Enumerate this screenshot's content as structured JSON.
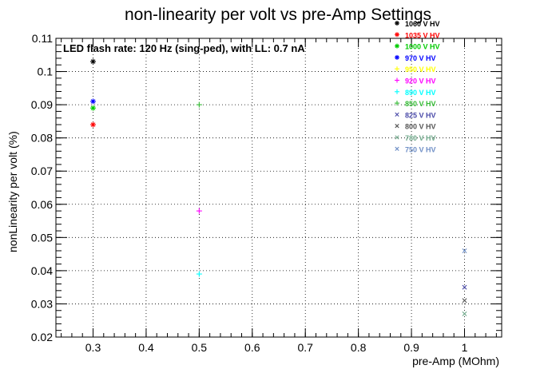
{
  "chart_data": {
    "type": "scatter",
    "title": "non-linearity per volt vs pre-Amp Settings",
    "annotation": "LED flash rate: 120 Hz  (sing-ped), with LL: 0.7 nA",
    "xlabel": "pre-Amp (MOhm)",
    "ylabel": "nonLinearity per volt (%)",
    "xlim": [
      0.23,
      1.07
    ],
    "ylim": [
      0.02,
      0.11
    ],
    "x_ticks": [
      0.3,
      0.4,
      0.5,
      0.6,
      0.7,
      0.8,
      0.9,
      1.0
    ],
    "x_tick_labels": [
      "0.3",
      "0.4",
      "0.5",
      "0.6",
      "0.7",
      "0.8",
      "0.9",
      "1"
    ],
    "y_ticks": [
      0.02,
      0.03,
      0.04,
      0.05,
      0.06,
      0.07,
      0.08,
      0.09,
      0.1,
      0.11
    ],
    "y_tick_labels": [
      "0.02",
      "0.03",
      "0.04",
      "0.05",
      "0.06",
      "0.07",
      "0.08",
      "0.09",
      "0.1",
      "0.11"
    ],
    "grid": true,
    "legend_position": "top-right",
    "series": [
      {
        "name": "1060 V HV",
        "color": "#000000",
        "marker": "star",
        "points": [
          [
            0.3,
            0.103
          ]
        ]
      },
      {
        "name": "1035 V HV",
        "color": "#ff0000",
        "marker": "star",
        "points": [
          [
            0.3,
            0.084
          ]
        ]
      },
      {
        "name": "1000 V HV",
        "color": "#00cc00",
        "marker": "star",
        "points": [
          [
            0.3,
            0.089
          ]
        ]
      },
      {
        "name": "970 V HV",
        "color": "#0000ff",
        "marker": "star",
        "points": [
          [
            0.3,
            0.091
          ]
        ]
      },
      {
        "name": "950 V HV",
        "color": "#ffff00",
        "marker": "plus",
        "points": []
      },
      {
        "name": "920 V HV",
        "color": "#ff00ff",
        "marker": "plus",
        "points": [
          [
            0.5,
            0.058
          ]
        ]
      },
      {
        "name": "890 V HV",
        "color": "#00ffff",
        "marker": "plus",
        "points": [
          [
            0.5,
            0.039
          ]
        ]
      },
      {
        "name": "850 V HV",
        "color": "#33bb33",
        "marker": "plus",
        "points": [
          [
            0.5,
            0.09
          ]
        ]
      },
      {
        "name": "825 V HV",
        "color": "#4a4aa8",
        "marker": "cross",
        "points": [
          [
            1.0,
            0.035
          ]
        ]
      },
      {
        "name": "800 V HV",
        "color": "#555555",
        "marker": "cross",
        "points": [
          [
            1.0,
            0.031
          ]
        ]
      },
      {
        "name": "780 V HV",
        "color": "#6fa88a",
        "marker": "cross",
        "points": [
          [
            1.0,
            0.027
          ]
        ]
      },
      {
        "name": "750 V HV",
        "color": "#6f8fc6",
        "marker": "cross",
        "points": [
          [
            1.0,
            0.046
          ]
        ]
      }
    ]
  }
}
